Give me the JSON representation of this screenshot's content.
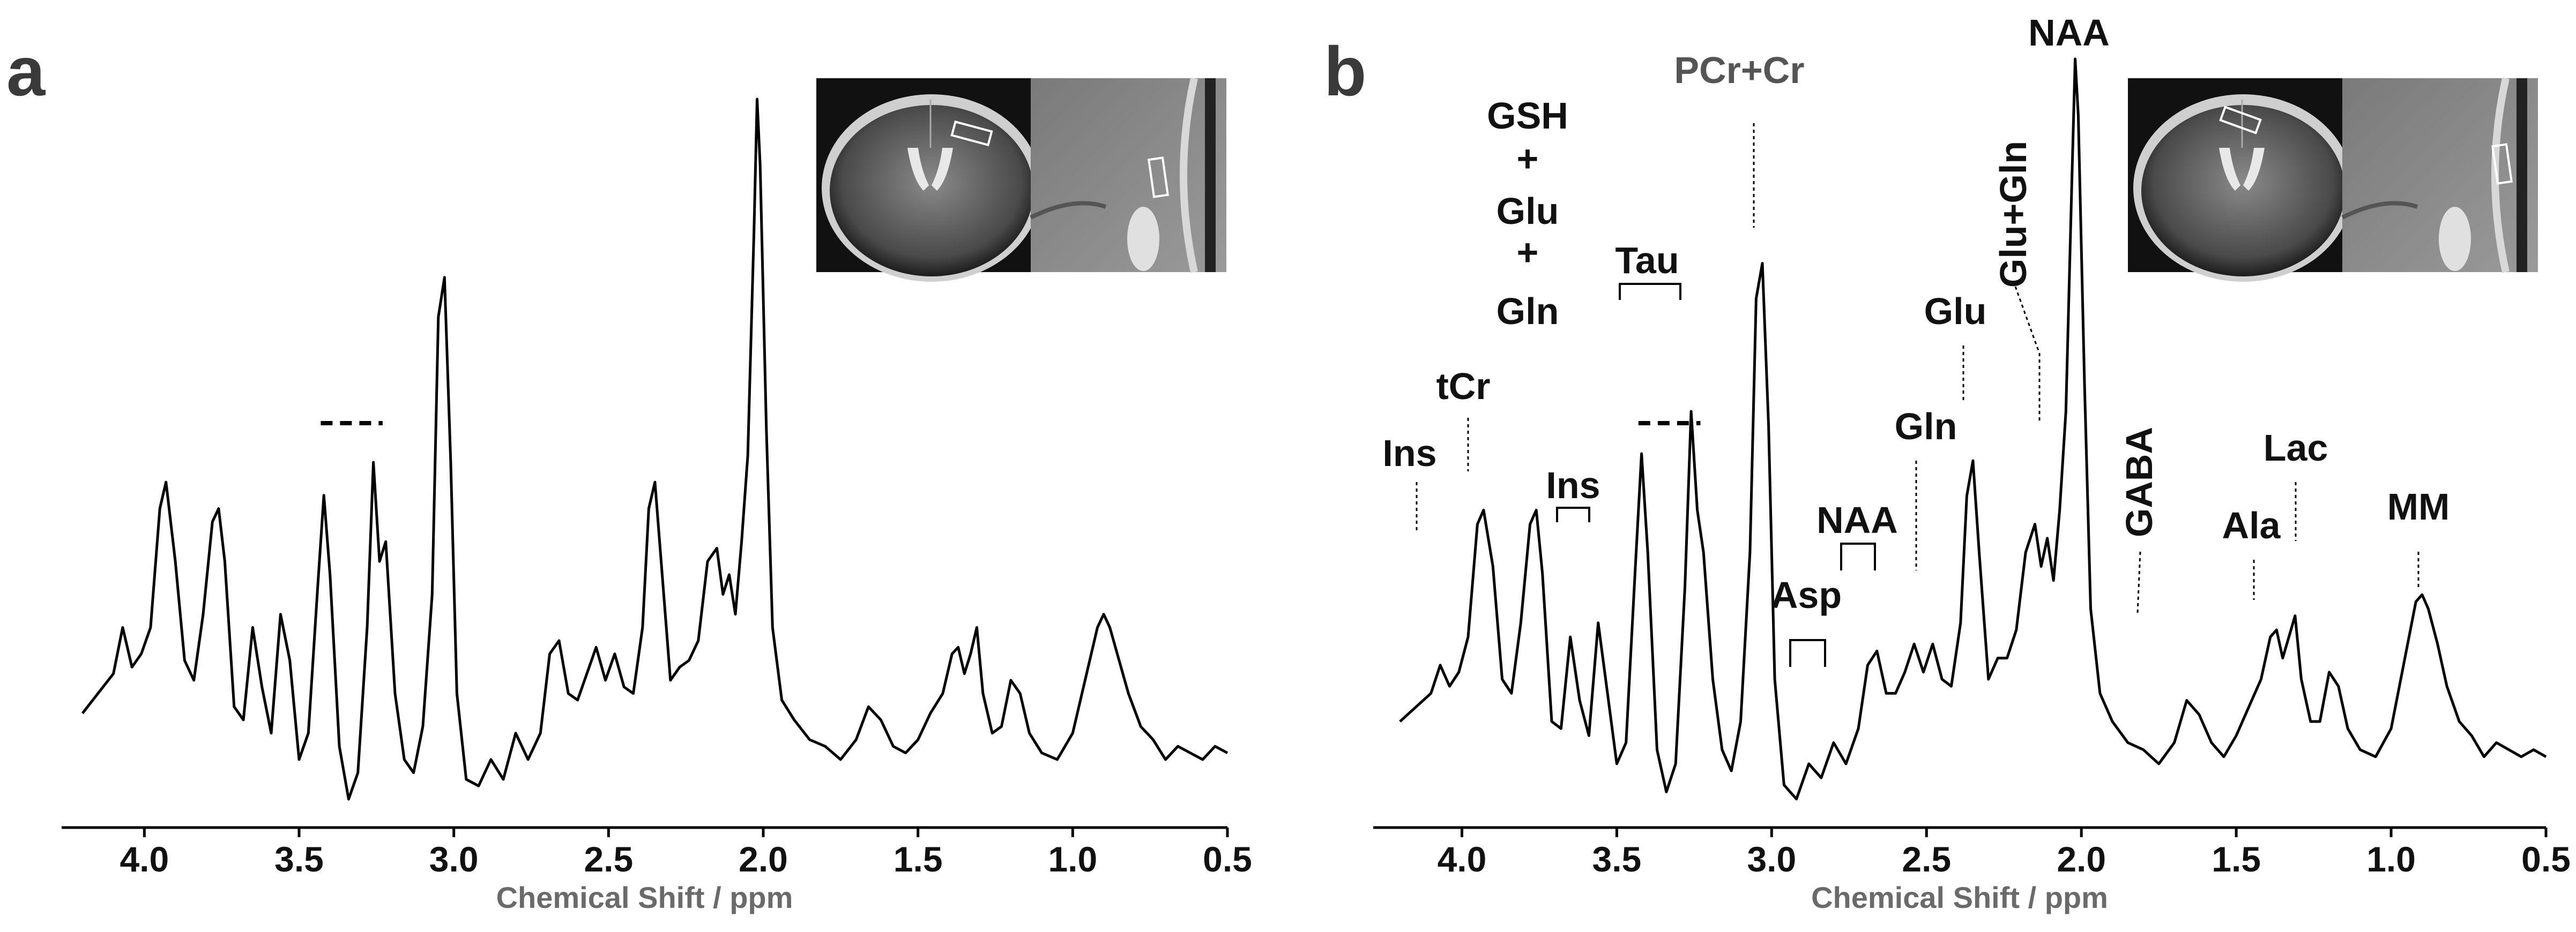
{
  "chart_data": [
    {
      "type": "line",
      "panel_label": "a",
      "xlabel": "Chemical Shift / ppm",
      "x_reversed": true,
      "xlim": [
        4.25,
        0.5
      ],
      "ylim": [
        0,
        1
      ],
      "xticks": [
        "4.0",
        "3.5",
        "3.0",
        "2.5",
        "2.0",
        "1.5",
        "1.0",
        "0.5"
      ],
      "grid": false,
      "inset": "mri-brain-images",
      "dashed_marker_ppm": [
        3.43,
        3.23
      ],
      "series": [
        {
          "x": [
            4.2,
            4.15,
            4.1,
            4.07,
            4.04,
            4.01,
            3.98,
            3.95,
            3.93,
            3.9,
            3.87,
            3.84,
            3.81,
            3.78,
            3.76,
            3.74,
            3.71,
            3.68,
            3.65,
            3.62,
            3.59,
            3.56,
            3.53,
            3.5,
            3.47,
            3.44,
            3.42,
            3.4,
            3.37,
            3.34,
            3.31,
            3.28,
            3.26,
            3.24,
            3.22,
            3.19,
            3.16,
            3.13,
            3.1,
            3.07,
            3.05,
            3.03,
            3.01,
            2.99,
            2.96,
            2.92,
            2.88,
            2.84,
            2.8,
            2.76,
            2.72,
            2.69,
            2.66,
            2.63,
            2.6,
            2.57,
            2.54,
            2.51,
            2.48,
            2.45,
            2.42,
            2.39,
            2.37,
            2.35,
            2.33,
            2.3,
            2.27,
            2.24,
            2.21,
            2.18,
            2.15,
            2.13,
            2.11,
            2.09,
            2.07,
            2.05,
            2.03,
            2.02,
            2.01,
            1.99,
            1.97,
            1.94,
            1.9,
            1.85,
            1.8,
            1.75,
            1.7,
            1.66,
            1.62,
            1.58,
            1.54,
            1.5,
            1.46,
            1.42,
            1.39,
            1.37,
            1.35,
            1.33,
            1.31,
            1.29,
            1.26,
            1.23,
            1.2,
            1.17,
            1.14,
            1.1,
            1.05,
            1.0,
            0.96,
            0.92,
            0.9,
            0.88,
            0.85,
            0.82,
            0.78,
            0.74,
            0.7,
            0.66,
            0.62,
            0.58,
            0.54,
            0.5
          ],
          "y": [
            0.07,
            0.1,
            0.13,
            0.2,
            0.14,
            0.16,
            0.2,
            0.38,
            0.42,
            0.3,
            0.15,
            0.12,
            0.22,
            0.36,
            0.38,
            0.3,
            0.08,
            0.06,
            0.2,
            0.11,
            0.04,
            0.22,
            0.15,
            0.0,
            0.04,
            0.26,
            0.4,
            0.28,
            0.02,
            -0.06,
            -0.02,
            0.2,
            0.45,
            0.3,
            0.33,
            0.1,
            0.0,
            -0.02,
            0.05,
            0.25,
            0.67,
            0.73,
            0.45,
            0.1,
            -0.03,
            -0.04,
            0.0,
            -0.03,
            0.04,
            0.0,
            0.04,
            0.16,
            0.18,
            0.1,
            0.09,
            0.13,
            0.17,
            0.12,
            0.16,
            0.11,
            0.1,
            0.2,
            0.38,
            0.42,
            0.3,
            0.12,
            0.14,
            0.15,
            0.18,
            0.3,
            0.32,
            0.25,
            0.28,
            0.22,
            0.33,
            0.46,
            0.8,
            1.0,
            0.9,
            0.5,
            0.2,
            0.09,
            0.06,
            0.03,
            0.02,
            0.0,
            0.03,
            0.08,
            0.06,
            0.02,
            0.01,
            0.03,
            0.07,
            0.1,
            0.16,
            0.17,
            0.13,
            0.16,
            0.2,
            0.1,
            0.04,
            0.05,
            0.12,
            0.1,
            0.04,
            0.01,
            0.0,
            0.04,
            0.12,
            0.2,
            0.22,
            0.2,
            0.15,
            0.1,
            0.05,
            0.03,
            0.0,
            0.02,
            0.01,
            0.0,
            0.02,
            0.01
          ]
        }
      ]
    },
    {
      "type": "line",
      "panel_label": "b",
      "xlabel": "Chemical Shift / ppm",
      "x_reversed": true,
      "xlim": [
        4.25,
        0.5
      ],
      "ylim": [
        0,
        1
      ],
      "xticks": [
        "4.0",
        "3.5",
        "3.0",
        "2.5",
        "2.0",
        "1.5",
        "1.0",
        "0.5"
      ],
      "grid": false,
      "inset": "mri-brain-images",
      "dashed_marker_ppm": [
        3.43,
        3.23
      ],
      "annotations": [
        {
          "text": "Ins",
          "ppm": 4.1,
          "style": "line"
        },
        {
          "text": "tCr",
          "ppm": 3.93,
          "style": "line"
        },
        {
          "text": "GSH",
          "ppm": 3.77,
          "style": "none"
        },
        {
          "text": "+",
          "ppm": 3.77,
          "style": "none"
        },
        {
          "text": "Glu",
          "ppm": 3.77,
          "style": "none"
        },
        {
          "text": "+",
          "ppm": 3.77,
          "style": "none"
        },
        {
          "text": "Gln",
          "ppm": 3.77,
          "style": "none"
        },
        {
          "text": "Ins",
          "ppm": 3.6,
          "style": "bracket",
          "range": [
            3.65,
            3.55
          ]
        },
        {
          "text": "Tau",
          "ppm": 3.36,
          "style": "bracket",
          "range": [
            3.45,
            3.25
          ]
        },
        {
          "text": "PCr+Cr",
          "ppm": 3.03,
          "style": "line"
        },
        {
          "text": "Asp",
          "ppm": 2.84,
          "style": "bracket",
          "range": [
            2.9,
            2.78
          ]
        },
        {
          "text": "NAA",
          "ppm": 2.68,
          "style": "bracket",
          "range": [
            2.72,
            2.63
          ]
        },
        {
          "text": "Gln",
          "ppm": 2.5,
          "style": "line"
        },
        {
          "text": "Glu",
          "ppm": 2.35,
          "style": "line"
        },
        {
          "text": "Glu+Gln",
          "ppm": 2.13,
          "style": "line"
        },
        {
          "text": "NAA",
          "ppm": 2.01,
          "style": "none"
        },
        {
          "text": "GABA",
          "ppm": 1.8,
          "style": "line"
        },
        {
          "text": "Ala",
          "ppm": 1.42,
          "style": "line"
        },
        {
          "text": "Lac",
          "ppm": 1.31,
          "style": "line"
        },
        {
          "text": "MM",
          "ppm": 0.9,
          "style": "line"
        }
      ],
      "series": [
        {
          "x": [
            4.2,
            4.15,
            4.1,
            4.07,
            4.04,
            4.01,
            3.98,
            3.95,
            3.93,
            3.9,
            3.87,
            3.84,
            3.81,
            3.78,
            3.76,
            3.74,
            3.71,
            3.68,
            3.65,
            3.62,
            3.59,
            3.56,
            3.53,
            3.5,
            3.47,
            3.44,
            3.42,
            3.4,
            3.37,
            3.34,
            3.31,
            3.28,
            3.26,
            3.24,
            3.22,
            3.19,
            3.16,
            3.13,
            3.1,
            3.07,
            3.05,
            3.03,
            3.01,
            2.99,
            2.96,
            2.92,
            2.88,
            2.84,
            2.8,
            2.76,
            2.72,
            2.69,
            2.66,
            2.63,
            2.6,
            2.57,
            2.54,
            2.51,
            2.48,
            2.45,
            2.42,
            2.39,
            2.37,
            2.35,
            2.33,
            2.3,
            2.27,
            2.24,
            2.21,
            2.18,
            2.15,
            2.13,
            2.11,
            2.09,
            2.07,
            2.05,
            2.03,
            2.02,
            2.01,
            1.99,
            1.97,
            1.94,
            1.9,
            1.85,
            1.8,
            1.75,
            1.7,
            1.66,
            1.62,
            1.58,
            1.54,
            1.5,
            1.46,
            1.42,
            1.39,
            1.37,
            1.35,
            1.33,
            1.31,
            1.29,
            1.26,
            1.23,
            1.2,
            1.17,
            1.14,
            1.1,
            1.05,
            1.0,
            0.96,
            0.92,
            0.9,
            0.88,
            0.85,
            0.82,
            0.78,
            0.74,
            0.7,
            0.66,
            0.62,
            0.58,
            0.54,
            0.5
          ],
          "y": [
            0.06,
            0.08,
            0.1,
            0.14,
            0.11,
            0.13,
            0.18,
            0.34,
            0.36,
            0.28,
            0.12,
            0.1,
            0.2,
            0.34,
            0.36,
            0.27,
            0.06,
            0.05,
            0.18,
            0.09,
            0.04,
            0.2,
            0.1,
            0.0,
            0.03,
            0.28,
            0.44,
            0.3,
            0.02,
            -0.04,
            0.0,
            0.25,
            0.5,
            0.36,
            0.3,
            0.12,
            0.02,
            -0.01,
            0.06,
            0.3,
            0.66,
            0.71,
            0.48,
            0.12,
            -0.03,
            -0.05,
            0.0,
            -0.02,
            0.03,
            0.0,
            0.05,
            0.14,
            0.16,
            0.1,
            0.1,
            0.13,
            0.17,
            0.13,
            0.17,
            0.12,
            0.11,
            0.2,
            0.38,
            0.43,
            0.3,
            0.12,
            0.15,
            0.15,
            0.19,
            0.3,
            0.34,
            0.28,
            0.32,
            0.26,
            0.36,
            0.5,
            0.84,
            1.0,
            0.92,
            0.54,
            0.22,
            0.1,
            0.06,
            0.03,
            0.02,
            0.0,
            0.03,
            0.09,
            0.07,
            0.03,
            0.01,
            0.04,
            0.08,
            0.12,
            0.18,
            0.19,
            0.15,
            0.18,
            0.21,
            0.12,
            0.06,
            0.06,
            0.13,
            0.11,
            0.05,
            0.02,
            0.01,
            0.05,
            0.14,
            0.23,
            0.24,
            0.22,
            0.17,
            0.11,
            0.06,
            0.04,
            0.01,
            0.03,
            0.02,
            0.01,
            0.02,
            0.01
          ]
        }
      ]
    }
  ]
}
